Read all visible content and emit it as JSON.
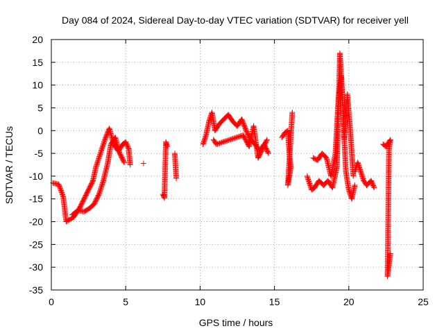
{
  "chart_data": {
    "type": "scatter",
    "title": "Day 084 of 2024, Sidereal Day-to-day VTEC variation (SDTVAR) for receiver yell",
    "xlabel": "GPS time / hours",
    "ylabel": "SDTVAR / TECUs",
    "xlim": [
      0,
      25
    ],
    "ylim": [
      -35,
      20
    ],
    "xticks": [
      "0",
      "5",
      "10",
      "15",
      "20",
      "25"
    ],
    "yticks": [
      "-35",
      "-30",
      "-25",
      "-20",
      "-15",
      "-10",
      "-5",
      "0",
      "5",
      "10",
      "15",
      "20"
    ],
    "grid": true,
    "marker": "+",
    "series": [
      {
        "name": "SDTVAR",
        "color": "#ff0000",
        "segments": [
          {
            "x": [
              0.1,
              0.5,
              0.8,
              1.0,
              1.5,
              1.9,
              2.2,
              2.5,
              2.8,
              3.0,
              3.3,
              3.6,
              3.9,
              4.2,
              4.5,
              4.8,
              5.0,
              5.2,
              5.3
            ],
            "y": [
              -11.5,
              -11.8,
              -14.5,
              -20,
              -19,
              -17,
              -15,
              -13,
              -11,
              -8,
              -5,
              -2,
              0.5,
              -3,
              -4.5,
              -3,
              -2.5,
              -4,
              -7.5
            ]
          },
          {
            "x": [
              1.4,
              1.8,
              2.2,
              2.6,
              2.9,
              3.2,
              3.5,
              3.8,
              4.0,
              4.3,
              4.6,
              4.9
            ],
            "y": [
              -18.5,
              -17.5,
              -17.8,
              -17,
              -16,
              -14,
              -11,
              -7,
              -3,
              -1.5,
              -5,
              -7
            ]
          },
          {
            "x": [
              6.2
            ],
            "y": [
              -7.2
            ]
          },
          {
            "x": [
              7.5,
              7.6,
              7.7,
              7.8
            ],
            "y": [
              -14,
              -14.8,
              -2.5,
              -3.5
            ]
          },
          {
            "x": [
              8.3,
              8.4
            ],
            "y": [
              -5,
              -10.5
            ]
          },
          {
            "x": [
              10.2,
              10.4,
              10.6,
              10.8,
              11.0,
              11.3,
              11.6,
              11.9,
              12.2,
              12.5,
              12.8,
              13.1,
              13.4,
              13.7,
              14.0,
              14.3,
              14.6
            ],
            "y": [
              -3,
              -1,
              2,
              4,
              0,
              1.5,
              2.5,
              3.5,
              2,
              1,
              2.5,
              0,
              -2,
              -3,
              -4.5,
              -3,
              -5
            ]
          },
          {
            "x": [
              10.9,
              11.1,
              12.9,
              13.3,
              13.6,
              13.9,
              14.2,
              14.5
            ],
            "y": [
              -2,
              -3,
              -1,
              -3.5,
              1,
              -6,
              -4,
              -2
            ]
          },
          {
            "x": [
              15.5,
              15.7,
              15.9,
              16.0,
              16.1,
              16.0,
              15.9,
              16.2
            ],
            "y": [
              -1.5,
              -0.5,
              0,
              -5,
              -8,
              -10,
              -12,
              4
            ]
          },
          {
            "x": [
              17.2,
              17.5,
              17.7,
              18.0,
              18.3,
              18.6,
              18.9,
              19.2,
              19.4,
              19.6,
              19.8,
              20.0,
              20.2,
              20.4
            ],
            "y": [
              -10,
              -13,
              -12.5,
              -11,
              -12,
              -11,
              -12.5,
              -8,
              17,
              5,
              -9,
              -13,
              -15,
              -12
            ]
          },
          {
            "x": [
              17.6,
              17.9,
              18.2,
              18.5,
              18.8,
              19.1,
              19.3,
              19.5,
              19.7,
              19.9,
              20.1,
              20.3
            ],
            "y": [
              -6,
              -6.5,
              -5,
              -6,
              -10,
              -5,
              7,
              12,
              -2,
              8,
              0,
              -10
            ]
          },
          {
            "x": [
              20.4,
              20.6,
              20.8,
              21.0,
              21.2,
              21.5,
              21.7
            ],
            "y": [
              -9,
              -7,
              -9,
              -11,
              -12,
              -11,
              -12.5
            ]
          },
          {
            "x": [
              22.3,
              22.5,
              22.8,
              22.7,
              22.6,
              22.8
            ],
            "y": [
              -3,
              -3.5,
              -2,
              -4,
              -32,
              -27
            ]
          }
        ]
      }
    ]
  }
}
